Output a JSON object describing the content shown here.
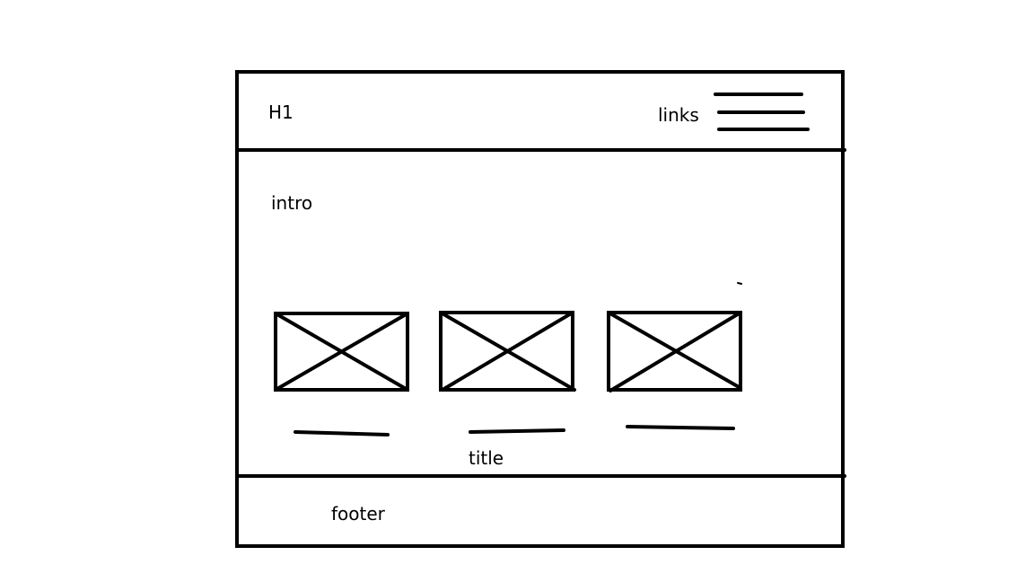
{
  "colors": {
    "ink": "#000000",
    "paper": "#ffffff"
  },
  "header": {
    "heading": "H1",
    "links_label": "links",
    "menu_icon": "hamburger-menu-icon"
  },
  "main": {
    "intro_label": "intro",
    "image_placeholder_icon": "image-placeholder-icon",
    "card_count_shown": 3,
    "title_label": "title"
  },
  "footer": {
    "label": "footer"
  }
}
